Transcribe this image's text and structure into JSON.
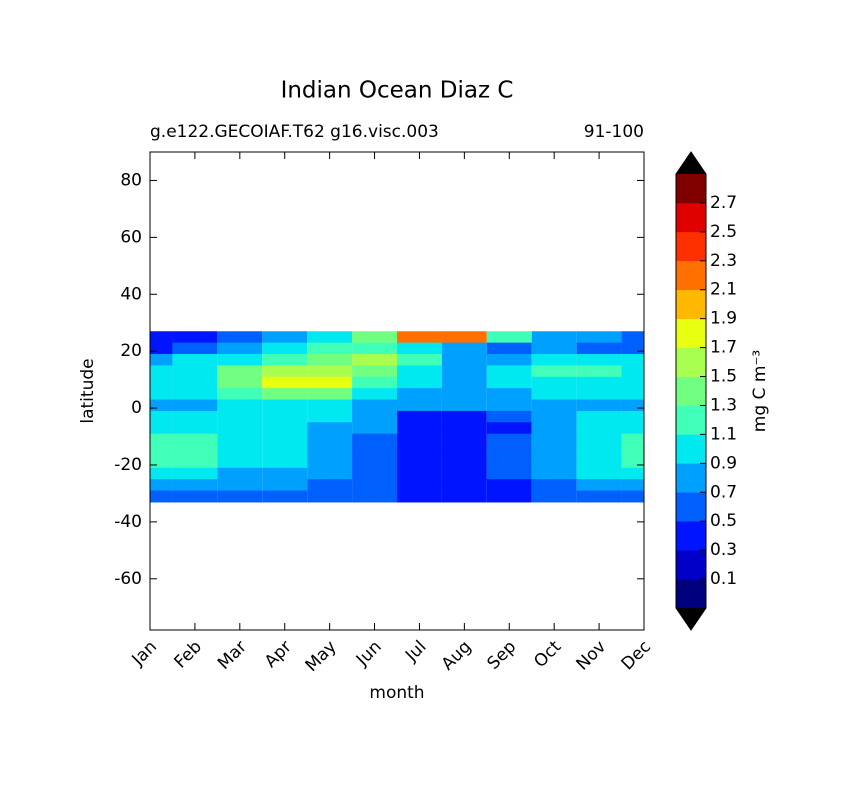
{
  "chart_data": {
    "type": "contourf",
    "title": "Indian Ocean Diaz C",
    "subtitle_left": "g.e122.GECOIAF.T62 g16.visc.003",
    "subtitle_right": "91-100",
    "xlabel": "month",
    "ylabel": "latitude",
    "categories": [
      "Jan",
      "Feb",
      "Mar",
      "Apr",
      "May",
      "Jun",
      "Jul",
      "Aug",
      "Sep",
      "Oct",
      "Nov",
      "Dec"
    ],
    "lat": [
      25,
      21,
      17,
      13,
      9,
      5,
      1,
      -3,
      -7,
      -11,
      -15,
      -19,
      -23,
      -27,
      -31
    ],
    "z": [
      [
        0.4,
        0.45,
        0.6,
        0.8,
        0.9,
        1.4,
        2.2,
        2.2,
        1.2,
        0.8,
        0.7,
        0.6
      ],
      [
        0.4,
        0.5,
        0.7,
        0.9,
        1.1,
        1.2,
        1.0,
        0.8,
        0.6,
        0.7,
        0.6,
        0.5
      ],
      [
        0.8,
        0.9,
        1.0,
        1.2,
        1.4,
        1.6,
        1.1,
        0.85,
        0.8,
        0.9,
        1.0,
        0.9
      ],
      [
        0.9,
        1.0,
        1.3,
        1.5,
        1.6,
        1.4,
        1.0,
        0.8,
        0.9,
        1.1,
        1.2,
        1.0
      ],
      [
        0.9,
        1.0,
        1.3,
        1.8,
        1.8,
        1.2,
        0.9,
        0.8,
        0.9,
        1.0,
        1.0,
        0.9
      ],
      [
        0.9,
        0.95,
        1.1,
        1.3,
        1.3,
        1.0,
        0.85,
        0.8,
        0.85,
        0.9,
        0.9,
        0.9
      ],
      [
        0.75,
        0.8,
        0.9,
        1.0,
        0.95,
        0.85,
        0.7,
        0.7,
        0.75,
        0.8,
        0.85,
        0.85
      ],
      [
        0.9,
        0.9,
        0.9,
        0.95,
        0.9,
        0.75,
        0.45,
        0.45,
        0.5,
        0.75,
        0.9,
        0.9
      ],
      [
        1.0,
        0.95,
        0.95,
        0.9,
        0.85,
        0.7,
        0.45,
        0.45,
        0.45,
        0.7,
        0.9,
        0.95
      ],
      [
        1.2,
        1.1,
        1.0,
        0.95,
        0.8,
        0.6,
        0.45,
        0.45,
        0.5,
        0.7,
        0.9,
        1.1
      ],
      [
        1.2,
        1.2,
        1.0,
        0.95,
        0.75,
        0.6,
        0.45,
        0.45,
        0.5,
        0.75,
        0.95,
        1.1
      ],
      [
        1.2,
        1.15,
        0.95,
        0.9,
        0.75,
        0.55,
        0.45,
        0.45,
        0.55,
        0.8,
        1.0,
        1.2
      ],
      [
        1.0,
        0.9,
        0.85,
        0.8,
        0.7,
        0.55,
        0.45,
        0.45,
        0.5,
        0.7,
        0.9,
        1.0
      ],
      [
        0.8,
        0.75,
        0.7,
        0.7,
        0.6,
        0.5,
        0.4,
        0.4,
        0.45,
        0.6,
        0.8,
        0.8
      ],
      [
        0.6,
        0.6,
        0.55,
        0.55,
        0.5,
        0.5,
        0.35,
        0.35,
        0.4,
        0.5,
        0.6,
        0.6
      ]
    ],
    "ylim": [
      -78,
      90
    ],
    "yticks": [
      -60,
      -40,
      -20,
      0,
      20,
      40,
      60,
      80
    ],
    "cbar_label": "mg C m⁻³",
    "cbar_ticks": [
      0.1,
      0.3,
      0.5,
      0.7,
      0.9,
      1.1,
      1.3,
      1.5,
      1.7,
      1.9,
      2.1,
      2.3,
      2.5,
      2.7
    ],
    "cbar_colors": [
      "#00007f",
      "#0000c8",
      "#0014ff",
      "#0060ff",
      "#00a0ff",
      "#00e8f0",
      "#40ffb8",
      "#70ff80",
      "#a8ff50",
      "#e8ff10",
      "#ffb800",
      "#ff7000",
      "#ff3000",
      "#e00000",
      "#800000"
    ],
    "extend_color": "#000000"
  }
}
